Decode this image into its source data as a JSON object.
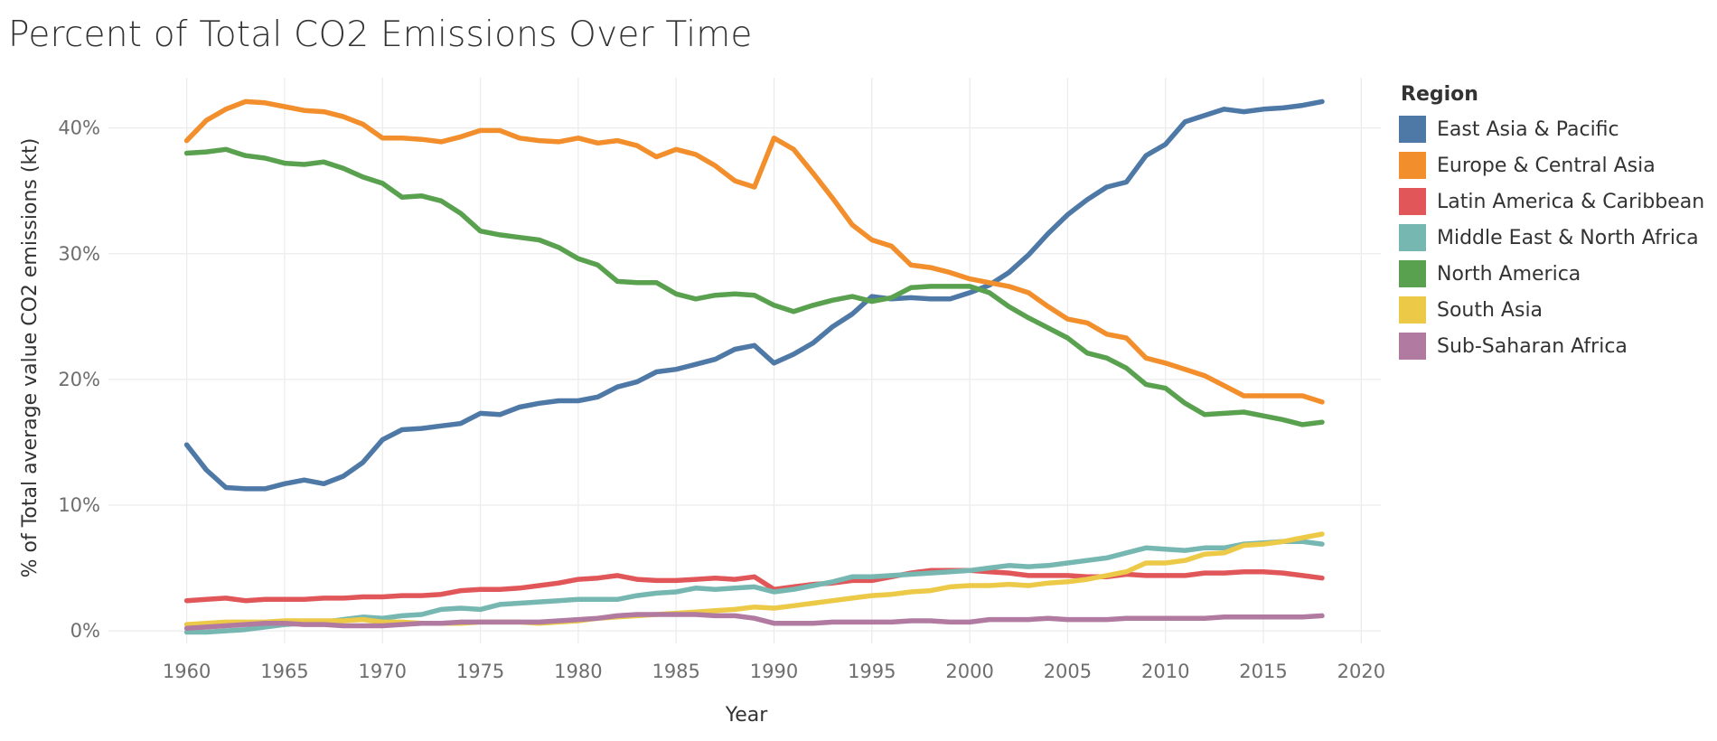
{
  "title": "Percent of Total CO2 Emissions Over Time",
  "chart_data": {
    "type": "line",
    "title": "Percent of Total CO2 Emissions Over Time",
    "xlabel": "Year",
    "ylabel": "% of Total average value CO2 emissions (kt)",
    "xlim": [
      1956,
      2021
    ],
    "ylim": [
      -1,
      44
    ],
    "xticks": [
      1960,
      1965,
      1970,
      1975,
      1980,
      1985,
      1990,
      1995,
      2000,
      2005,
      2010,
      2015,
      2020
    ],
    "xtick_labels": [
      "1960",
      "1965",
      "1970",
      "1975",
      "1980",
      "1985",
      "1990",
      "1995",
      "2000",
      "2005",
      "2010",
      "2015",
      "2020"
    ],
    "yticks": [
      0,
      10,
      20,
      30,
      40
    ],
    "ytick_labels": [
      "0%",
      "10%",
      "20%",
      "30%",
      "40%"
    ],
    "grid": true,
    "legend_title": "Region",
    "legend_position": "right",
    "x": [
      1960,
      1961,
      1962,
      1963,
      1964,
      1965,
      1966,
      1967,
      1968,
      1969,
      1970,
      1971,
      1972,
      1973,
      1974,
      1975,
      1976,
      1977,
      1978,
      1979,
      1980,
      1981,
      1982,
      1983,
      1984,
      1985,
      1986,
      1987,
      1988,
      1989,
      1990,
      1991,
      1992,
      1993,
      1994,
      1995,
      1996,
      1997,
      1998,
      1999,
      2000,
      2001,
      2002,
      2003,
      2004,
      2005,
      2006,
      2007,
      2008,
      2009,
      2010,
      2011,
      2012,
      2013,
      2014,
      2015,
      2016,
      2017,
      2018
    ],
    "series": [
      {
        "name": "East Asia & Pacific",
        "color": "#4e79a7",
        "values": [
          14.8,
          12.8,
          11.4,
          11.3,
          11.3,
          11.7,
          12.0,
          11.7,
          12.3,
          13.4,
          15.2,
          16.0,
          16.1,
          16.3,
          16.5,
          17.3,
          17.2,
          17.8,
          18.1,
          18.3,
          18.3,
          18.6,
          19.4,
          19.8,
          20.6,
          20.8,
          21.2,
          21.6,
          22.4,
          22.7,
          21.3,
          22.0,
          22.9,
          24.2,
          25.2,
          26.6,
          26.4,
          26.5,
          26.4,
          26.4,
          26.9,
          27.5,
          28.5,
          29.9,
          31.6,
          33.1,
          34.3,
          35.3,
          35.7,
          37.8,
          38.7,
          40.5,
          41.0,
          41.5,
          41.3,
          41.5,
          41.6,
          41.8,
          42.1
        ]
      },
      {
        "name": "Europe & Central Asia",
        "color": "#f28e2b",
        "values": [
          39.0,
          40.6,
          41.5,
          42.1,
          42.0,
          41.7,
          41.4,
          41.3,
          40.9,
          40.3,
          39.2,
          39.2,
          39.1,
          38.9,
          39.3,
          39.8,
          39.8,
          39.2,
          39.0,
          38.9,
          39.2,
          38.8,
          39.0,
          38.6,
          37.7,
          38.3,
          37.9,
          37.0,
          35.8,
          35.3,
          39.2,
          38.3,
          36.4,
          34.4,
          32.3,
          31.1,
          30.6,
          29.1,
          28.9,
          28.5,
          28.0,
          27.7,
          27.4,
          26.9,
          25.8,
          24.8,
          24.5,
          23.6,
          23.3,
          21.7,
          21.3,
          20.8,
          20.3,
          19.5,
          18.7,
          18.7,
          18.7,
          18.7,
          18.2
        ]
      },
      {
        "name": "Latin America & Caribbean",
        "color": "#e15759",
        "values": [
          2.4,
          2.5,
          2.6,
          2.4,
          2.5,
          2.5,
          2.5,
          2.6,
          2.6,
          2.7,
          2.7,
          2.8,
          2.8,
          2.9,
          3.2,
          3.3,
          3.3,
          3.4,
          3.6,
          3.8,
          4.1,
          4.2,
          4.4,
          4.1,
          4.0,
          4.0,
          4.1,
          4.2,
          4.1,
          4.3,
          3.3,
          3.5,
          3.7,
          3.8,
          4.0,
          4.0,
          4.3,
          4.6,
          4.8,
          4.8,
          4.8,
          4.7,
          4.6,
          4.4,
          4.4,
          4.4,
          4.3,
          4.3,
          4.5,
          4.4,
          4.4,
          4.4,
          4.6,
          4.6,
          4.7,
          4.7,
          4.6,
          4.4,
          4.2
        ]
      },
      {
        "name": "Middle East & North Africa",
        "color": "#76b7b2",
        "values": [
          -0.1,
          -0.1,
          0.0,
          0.1,
          0.3,
          0.5,
          0.6,
          0.7,
          0.9,
          1.1,
          1.0,
          1.2,
          1.3,
          1.7,
          1.8,
          1.7,
          2.1,
          2.2,
          2.3,
          2.4,
          2.5,
          2.5,
          2.5,
          2.8,
          3.0,
          3.1,
          3.4,
          3.3,
          3.4,
          3.5,
          3.1,
          3.3,
          3.6,
          3.9,
          4.3,
          4.3,
          4.4,
          4.5,
          4.6,
          4.7,
          4.8,
          5.0,
          5.2,
          5.1,
          5.2,
          5.4,
          5.6,
          5.8,
          6.2,
          6.6,
          6.5,
          6.4,
          6.6,
          6.6,
          6.9,
          7.0,
          7.1,
          7.1,
          6.9
        ]
      },
      {
        "name": "North America",
        "color": "#59a14f",
        "values": [
          38.0,
          38.1,
          38.3,
          37.8,
          37.6,
          37.2,
          37.1,
          37.3,
          36.8,
          36.1,
          35.6,
          34.5,
          34.6,
          34.2,
          33.2,
          31.8,
          31.5,
          31.3,
          31.1,
          30.5,
          29.6,
          29.1,
          27.8,
          27.7,
          27.7,
          26.8,
          26.4,
          26.7,
          26.8,
          26.7,
          25.9,
          25.4,
          25.9,
          26.3,
          26.6,
          26.2,
          26.5,
          27.3,
          27.4,
          27.4,
          27.4,
          26.9,
          25.8,
          24.9,
          24.1,
          23.3,
          22.1,
          21.7,
          20.9,
          19.6,
          19.3,
          18.1,
          17.2,
          17.3,
          17.4,
          17.1,
          16.8,
          16.4,
          16.6
        ]
      },
      {
        "name": "South Asia",
        "color": "#edc948",
        "values": [
          0.5,
          0.6,
          0.7,
          0.7,
          0.7,
          0.8,
          0.8,
          0.8,
          0.8,
          0.9,
          0.7,
          0.7,
          0.6,
          0.6,
          0.6,
          0.7,
          0.7,
          0.7,
          0.6,
          0.7,
          0.8,
          1.0,
          1.1,
          1.2,
          1.3,
          1.4,
          1.5,
          1.6,
          1.7,
          1.9,
          1.8,
          2.0,
          2.2,
          2.4,
          2.6,
          2.8,
          2.9,
          3.1,
          3.2,
          3.5,
          3.6,
          3.6,
          3.7,
          3.6,
          3.8,
          3.9,
          4.1,
          4.4,
          4.7,
          5.4,
          5.4,
          5.6,
          6.1,
          6.2,
          6.8,
          6.9,
          7.1,
          7.4,
          7.7
        ]
      },
      {
        "name": "Sub-Saharan Africa",
        "color": "#b07aa1",
        "values": [
          0.2,
          0.3,
          0.4,
          0.5,
          0.6,
          0.6,
          0.5,
          0.5,
          0.4,
          0.4,
          0.4,
          0.5,
          0.6,
          0.6,
          0.7,
          0.7,
          0.7,
          0.7,
          0.7,
          0.8,
          0.9,
          1.0,
          1.2,
          1.3,
          1.3,
          1.3,
          1.3,
          1.2,
          1.2,
          1.0,
          0.6,
          0.6,
          0.6,
          0.7,
          0.7,
          0.7,
          0.7,
          0.8,
          0.8,
          0.7,
          0.7,
          0.9,
          0.9,
          0.9,
          1.0,
          0.9,
          0.9,
          0.9,
          1.0,
          1.0,
          1.0,
          1.0,
          1.0,
          1.1,
          1.1,
          1.1,
          1.1,
          1.1,
          1.2
        ]
      }
    ]
  }
}
